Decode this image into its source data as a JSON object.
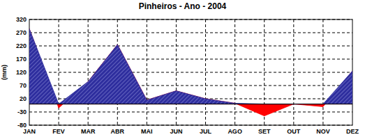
{
  "chart_data": {
    "type": "area",
    "title": "Pinheiros - Ano - 2004",
    "y_label": "(mm)",
    "categories": [
      "JAN",
      "FEV",
      "MAR",
      "ABR",
      "MAI",
      "JUN",
      "JUL",
      "AGO",
      "SET",
      "OUT",
      "NOV",
      "DEZ"
    ],
    "series": [
      {
        "color": "#ff0000",
        "values": [
          285,
          -15,
          85,
          225,
          15,
          50,
          20,
          3,
          -45,
          0,
          -10,
          125
        ]
      },
      {
        "color": "#2e2e9e",
        "values": [
          285,
          0,
          85,
          225,
          15,
          50,
          20,
          3,
          0,
          0,
          0,
          125
        ]
      }
    ],
    "ylim": [
      -80,
      320
    ],
    "yticks": [
      -80,
      -30,
      20,
      70,
      120,
      170,
      220,
      270,
      320
    ],
    "grid": true
  }
}
